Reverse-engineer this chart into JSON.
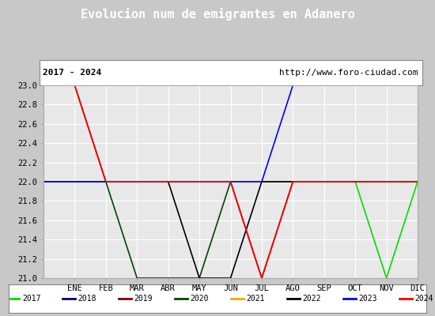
{
  "title": "Evolucion num de emigrantes en Adanero",
  "subtitle_left": "2017 - 2024",
  "subtitle_right": "http://www.foro-ciudad.com",
  "xlabel_months": [
    "ENE",
    "FEB",
    "MAR",
    "ABR",
    "MAY",
    "JUN",
    "JUL",
    "AGO",
    "SEP",
    "OCT",
    "NOV",
    "DIC"
  ],
  "ylim": [
    21.0,
    23.0
  ],
  "yticks": [
    21.0,
    21.2,
    21.4,
    21.6,
    21.8,
    22.0,
    22.2,
    22.4,
    22.6,
    22.8,
    23.0
  ],
  "series": {
    "2017": {
      "color": "#00dd00",
      "x": [
        0,
        1,
        2,
        3,
        4,
        5,
        6,
        7,
        8,
        9,
        10,
        11,
        12
      ],
      "y": [
        22,
        22,
        22,
        22,
        22,
        22,
        22,
        22,
        22,
        22,
        22,
        21,
        22
      ]
    },
    "2018": {
      "color": "#000080",
      "x": [
        0,
        1,
        2,
        3,
        4,
        5,
        6,
        7,
        8,
        9,
        10,
        11,
        12
      ],
      "y": [
        22,
        22,
        22,
        22,
        22,
        22,
        22,
        22,
        22,
        22,
        22,
        22,
        22
      ]
    },
    "2019": {
      "color": "#800000",
      "x": [
        0,
        1,
        2,
        3,
        4,
        5,
        6,
        7,
        8,
        9,
        10,
        11,
        12
      ],
      "y": [
        23,
        23,
        22,
        22,
        22,
        22,
        22,
        21,
        22,
        22,
        22,
        22,
        22
      ]
    },
    "2020": {
      "color": "#004400",
      "x": [
        0,
        1,
        2,
        3,
        4,
        5,
        6,
        7,
        8,
        9,
        10,
        11,
        12
      ],
      "y": [
        22,
        22,
        22,
        21,
        21,
        21,
        22,
        22,
        22,
        22,
        22,
        22,
        22
      ]
    },
    "2021": {
      "color": "#ffa500",
      "x": [
        0,
        1,
        2,
        3,
        4,
        5,
        6,
        7,
        8,
        9,
        10,
        11,
        12
      ],
      "y": [
        22,
        22,
        22,
        22,
        22,
        22,
        22,
        22,
        22,
        22,
        22,
        22,
        22
      ]
    },
    "2022": {
      "color": "#000000",
      "x": [
        0,
        1,
        2,
        3,
        4,
        5,
        6,
        7,
        8,
        9,
        10,
        11,
        12
      ],
      "y": [
        22,
        22,
        22,
        22,
        22,
        21,
        21,
        22,
        22,
        22,
        22,
        22,
        22
      ]
    },
    "2023": {
      "color": "#0000ff",
      "x": [
        0,
        1,
        2,
        3,
        4,
        5,
        6,
        7,
        8,
        9,
        10,
        11,
        12
      ],
      "y": [
        22,
        22,
        22,
        22,
        22,
        22,
        22,
        22,
        23,
        23,
        23,
        23,
        23
      ]
    },
    "2024": {
      "color": "#ff0000",
      "x": [
        0,
        1,
        2,
        3,
        4,
        5,
        6,
        7,
        8,
        9,
        10,
        11,
        12
      ],
      "y": [
        23,
        23,
        22,
        22,
        22,
        22,
        22,
        21,
        22,
        22,
        22,
        22,
        22
      ]
    }
  },
  "title_bg_color": "#4f81bd",
  "title_text_color": "#ffffff",
  "plot_bg_color": "#e8e8e8",
  "grid_color": "#ffffff",
  "outer_bg_color": "#c8c8c8",
  "legend_years": [
    "2017",
    "2018",
    "2019",
    "2020",
    "2021",
    "2022",
    "2023",
    "2024"
  ],
  "legend_colors": [
    "#00dd00",
    "#000080",
    "#800000",
    "#004400",
    "#ffa500",
    "#000000",
    "#0000ff",
    "#ff0000"
  ]
}
